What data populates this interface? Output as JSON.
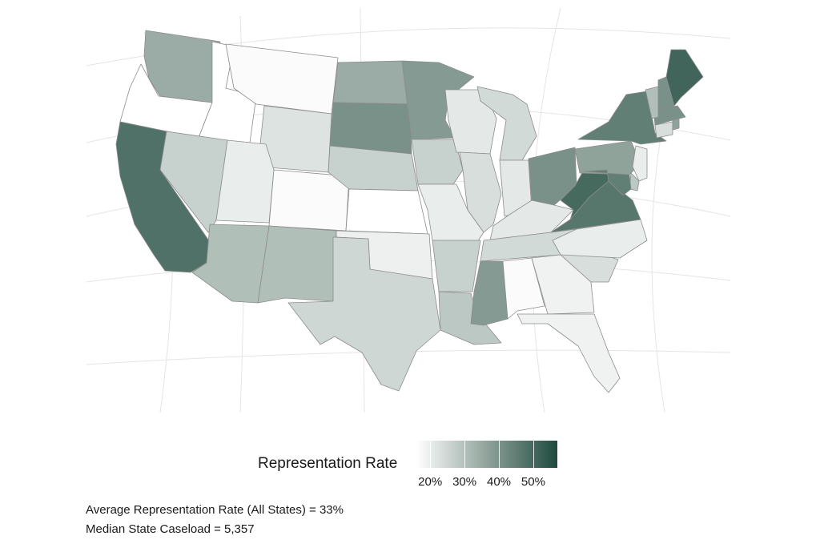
{
  "legend": {
    "title": "Representation Rate",
    "ticks": [
      {
        "label": "20%",
        "value": 20
      },
      {
        "label": "30%",
        "value": 30
      },
      {
        "label": "40%",
        "value": 40
      },
      {
        "label": "50%",
        "value": 50
      }
    ],
    "color_scale": {
      "low": "#ffffff",
      "mid": "#8fa39b",
      "high": "#1f4a3e"
    }
  },
  "notes": {
    "average": "Average Representation Rate (All States) = 33%",
    "median": "Median State Caseload = 5,357"
  },
  "map": {
    "region": "contiguous-united-states",
    "projection": "albers-like",
    "state_shades": {
      "WA": 0.45,
      "OR": 0.0,
      "CA": 0.78,
      "ID": 0.0,
      "NV": 0.25,
      "MT": 0.02,
      "WY": 0.15,
      "UT": 0.1,
      "AZ": 0.35,
      "CO": 0.02,
      "NM": 0.35,
      "ND": 0.45,
      "SD": 0.6,
      "NE": 0.25,
      "KS": 0.0,
      "OK": 0.08,
      "TX": 0.22,
      "MN": 0.55,
      "IA": 0.25,
      "MO": 0.1,
      "AR": 0.25,
      "LA": 0.3,
      "WI": 0.12,
      "IL": 0.18,
      "MI": 0.2,
      "IN": 0.12,
      "OH": 0.6,
      "KY": 0.12,
      "TN": 0.2,
      "MS": 0.55,
      "AL": 0.02,
      "GA": 0.07,
      "FL": 0.07,
      "SC": 0.18,
      "NC": 0.1,
      "VA": 0.75,
      "WV": 0.82,
      "PA": 0.5,
      "NY": 0.7,
      "VT": 0.35,
      "NH": 0.6,
      "ME": 0.85,
      "MA": 0.6,
      "CT": 0.18,
      "RI": 0.5,
      "NJ": 0.1,
      "DE": 0.3,
      "MD": 0.7
    }
  }
}
